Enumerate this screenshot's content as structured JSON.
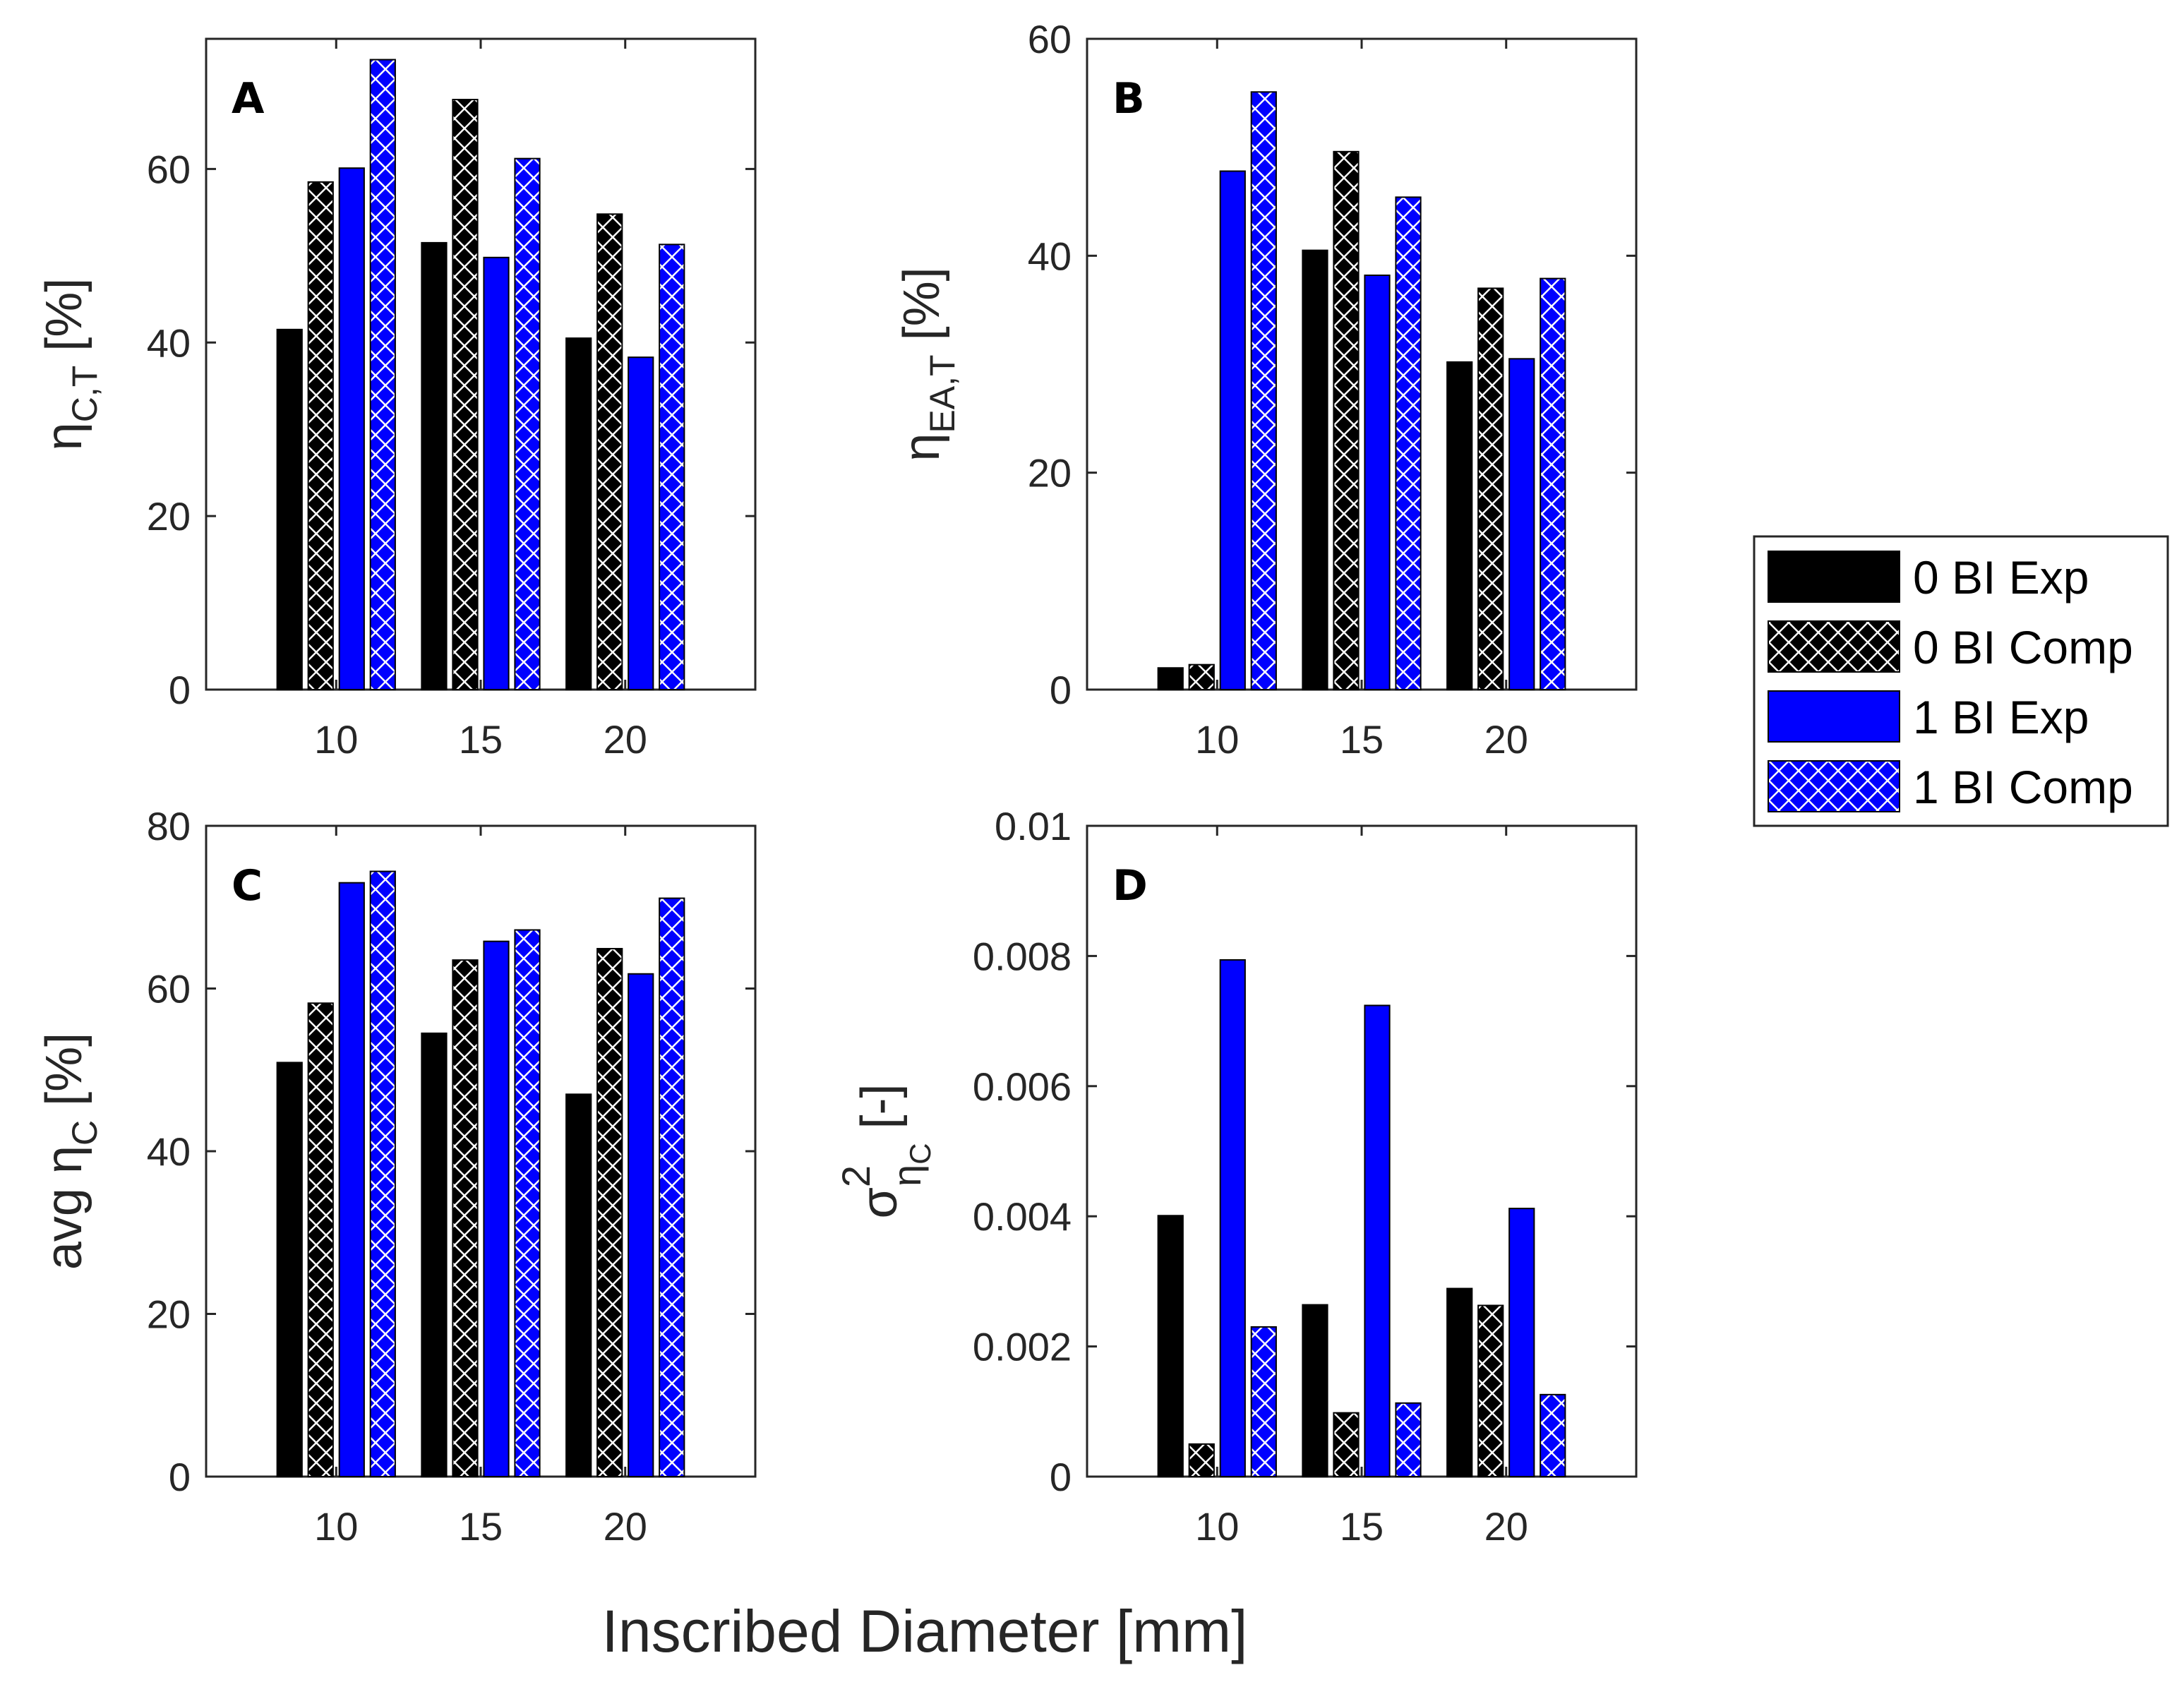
{
  "figure": {
    "xlabel": "Inscribed Diameter [mm]",
    "colors": {
      "exp0": "#000000",
      "exp1": "#0000ff",
      "hatch_line": "#ffffff"
    }
  },
  "legend": {
    "entries": [
      {
        "label": "0 BI Exp",
        "series": 0
      },
      {
        "label": "0 BI Comp",
        "series": 1
      },
      {
        "label": "1 BI Exp",
        "series": 2
      },
      {
        "label": "1 BI Comp",
        "series": 3
      }
    ]
  },
  "chart_data": [
    {
      "panel": "A",
      "type": "bar",
      "categories": [
        "10",
        "15",
        "20"
      ],
      "ylabel": {
        "base": "η",
        "sub": "C,T",
        "suffix": " [%]"
      },
      "ylim": [
        0,
        75
      ],
      "yticks": [
        "0",
        "20",
        "40",
        "60"
      ],
      "ytick_values": [
        0,
        20,
        40,
        60
      ],
      "series": [
        {
          "name": "0 BI Exp",
          "values": [
            41.5,
            51.5,
            40.5
          ]
        },
        {
          "name": "0 BI Comp",
          "values": [
            58.5,
            68.0,
            54.8
          ]
        },
        {
          "name": "1 BI Exp",
          "values": [
            60.1,
            49.8,
            38.3
          ]
        },
        {
          "name": "1 BI Comp",
          "values": [
            72.6,
            61.2,
            51.3
          ]
        }
      ]
    },
    {
      "panel": "B",
      "type": "bar",
      "categories": [
        "10",
        "15",
        "20"
      ],
      "ylabel": {
        "base": "η",
        "sub": "EA,T",
        "suffix": " [%]"
      },
      "ylim": [
        0,
        60
      ],
      "yticks": [
        "0",
        "20",
        "40",
        "60"
      ],
      "ytick_values": [
        0,
        20,
        40,
        60
      ],
      "series": [
        {
          "name": "0 BI Exp",
          "values": [
            2.0,
            40.5,
            30.2
          ]
        },
        {
          "name": "0 BI Comp",
          "values": [
            2.3,
            49.6,
            37.0
          ]
        },
        {
          "name": "1 BI Exp",
          "values": [
            47.8,
            38.2,
            30.5
          ]
        },
        {
          "name": "1 BI Comp",
          "values": [
            55.1,
            45.4,
            37.9
          ]
        }
      ]
    },
    {
      "panel": "C",
      "type": "bar",
      "categories": [
        "10",
        "15",
        "20"
      ],
      "ylabel": {
        "prefix": "avg ",
        "base": "η",
        "sub": "C",
        "suffix": " [%]"
      },
      "ylim": [
        0,
        80
      ],
      "yticks": [
        "0",
        "20",
        "40",
        "60",
        "80"
      ],
      "ytick_values": [
        0,
        20,
        40,
        60,
        80
      ],
      "series": [
        {
          "name": "0 BI Exp",
          "values": [
            50.9,
            54.5,
            47.0
          ]
        },
        {
          "name": "0 BI Comp",
          "values": [
            58.2,
            63.5,
            64.9
          ]
        },
        {
          "name": "1 BI Exp",
          "values": [
            73.0,
            65.8,
            61.8
          ]
        },
        {
          "name": "1 BI Comp",
          "values": [
            74.4,
            67.2,
            71.1
          ]
        }
      ]
    },
    {
      "panel": "D",
      "type": "bar",
      "categories": [
        "10",
        "15",
        "20"
      ],
      "ylabel": {
        "base": "σ",
        "sup": "2",
        "sub": "η",
        "subsub": "C",
        "suffix": " [-]"
      },
      "ylim": [
        0,
        0.01
      ],
      "yticks": [
        "0",
        "0.002",
        "0.004",
        "0.006",
        "0.008",
        "0.01"
      ],
      "ytick_values": [
        0,
        0.002,
        0.004,
        0.006,
        0.008,
        0.01
      ],
      "series": [
        {
          "name": "0 BI Exp",
          "values": [
            0.00401,
            0.00264,
            0.00289
          ]
        },
        {
          "name": "0 BI Comp",
          "values": [
            0.0005,
            0.00098,
            0.00263
          ]
        },
        {
          "name": "1 BI Exp",
          "values": [
            0.00794,
            0.00724,
            0.00412
          ]
        },
        {
          "name": "1 BI Comp",
          "values": [
            0.0023,
            0.00113,
            0.00126
          ]
        }
      ]
    }
  ]
}
